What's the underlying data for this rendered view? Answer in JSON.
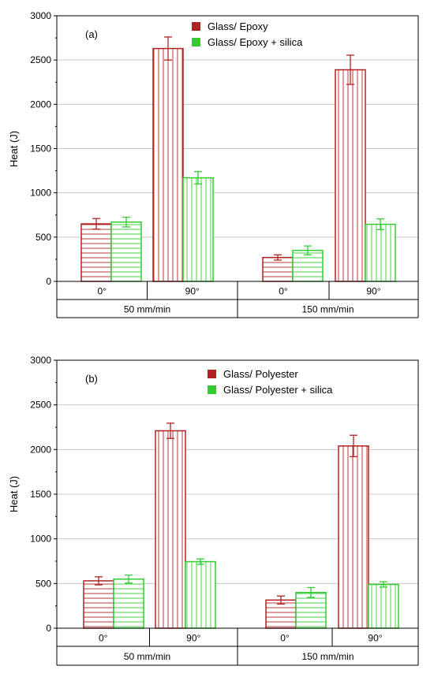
{
  "chart_data": [
    {
      "type": "bar",
      "panel_label": "(a)",
      "ylabel": "Heat (J)",
      "ylim": [
        0,
        3000
      ],
      "yticks": [
        0,
        500,
        1000,
        1500,
        2000,
        2500,
        3000
      ],
      "grid": true,
      "legend_position": "top-center",
      "categories": [
        "0°",
        "90°",
        "0°",
        "90°"
      ],
      "groups": [
        {
          "label": "50 mm/min",
          "categories": [
            "0°",
            "90°"
          ]
        },
        {
          "label": "150 mm/min",
          "categories": [
            "0°",
            "90°"
          ]
        }
      ],
      "series": [
        {
          "name": "Glass/ Epoxy",
          "color": "#b22222",
          "hatch": "horizontal-vertical",
          "values": [
            650,
            2630,
            270,
            2390
          ],
          "errors": [
            60,
            130,
            30,
            165
          ]
        },
        {
          "name": "Glass/ Epoxy + silica",
          "color": "#33cc33",
          "hatch": "horizontal-vertical",
          "values": [
            670,
            1170,
            350,
            645
          ],
          "errors": [
            55,
            70,
            50,
            60
          ]
        }
      ]
    },
    {
      "type": "bar",
      "panel_label": "(b)",
      "ylabel": "Heat (J)",
      "ylim": [
        0,
        3000
      ],
      "yticks": [
        0,
        500,
        1000,
        1500,
        2000,
        2500,
        3000
      ],
      "grid": true,
      "legend_position": "top-center",
      "categories": [
        "0°",
        "90°",
        "0°",
        "90°"
      ],
      "groups": [
        {
          "label": "50 mm/min",
          "categories": [
            "0°",
            "90°"
          ]
        },
        {
          "label": "150 mm/min",
          "categories": [
            "0°",
            "90°"
          ]
        }
      ],
      "series": [
        {
          "name": "Glass/ Polyester",
          "color": "#b22222",
          "hatch": "horizontal-vertical",
          "values": [
            530,
            2210,
            315,
            2040
          ],
          "errors": [
            45,
            85,
            45,
            120
          ]
        },
        {
          "name": "Glass/ Polyester + silica",
          "color": "#33cc33",
          "hatch": "horizontal-vertical",
          "values": [
            550,
            745,
            400,
            490
          ],
          "errors": [
            45,
            30,
            55,
            30
          ]
        }
      ]
    }
  ]
}
